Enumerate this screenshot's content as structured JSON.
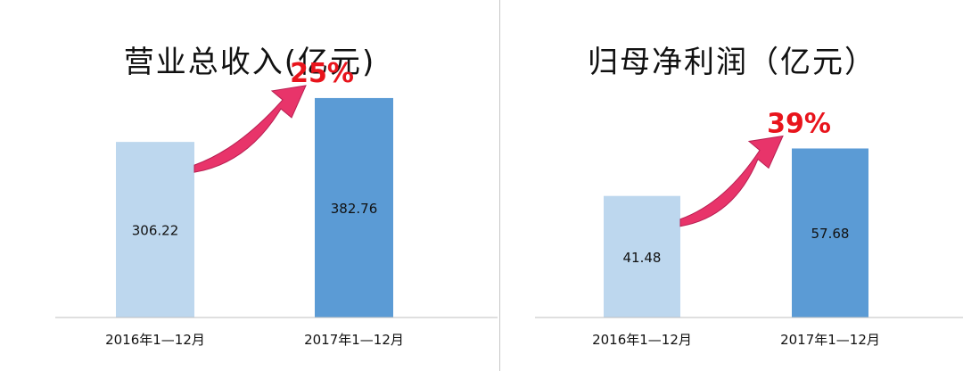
{
  "chart_data": [
    {
      "type": "bar",
      "title": "营业总收入(亿元)",
      "categories": [
        "2016年1—12月",
        "2017年1—12月"
      ],
      "values": [
        306.22,
        382.76
      ],
      "value_labels": [
        "306.22",
        "382.76"
      ],
      "growth_label": "25%",
      "ylim": [
        0,
        420
      ],
      "colors": [
        "#bdd7ee",
        "#5b9bd5"
      ],
      "arrow_color": "#e8346a",
      "grid": false,
      "legend": "none"
    },
    {
      "type": "bar",
      "title": "归母净利润（亿元）",
      "categories": [
        "2016年1—12月",
        "2017年1—12月"
      ],
      "values": [
        41.48,
        57.68
      ],
      "value_labels": [
        "41.48",
        "57.68"
      ],
      "growth_label": "39%",
      "ylim": [
        0,
        70
      ],
      "colors": [
        "#bdd7ee",
        "#5b9bd5"
      ],
      "arrow_color": "#e8346a",
      "grid": false,
      "legend": "none"
    }
  ]
}
